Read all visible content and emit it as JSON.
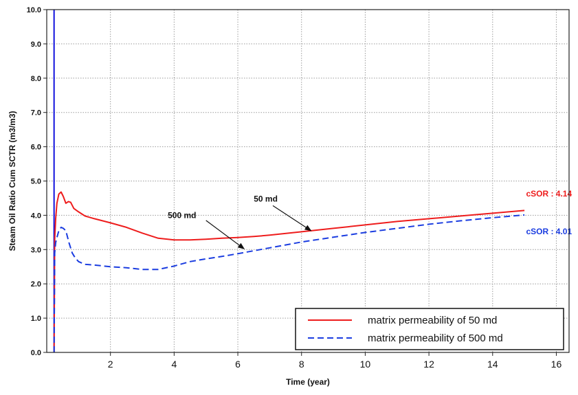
{
  "chart_data": {
    "type": "line",
    "xlabel": "Time (year)",
    "ylabel": "Steam Oil Ratio Cum SCTR (m3/m3)",
    "xlim": [
      0,
      16.4
    ],
    "ylim": [
      0,
      10
    ],
    "x_ticks": [
      2,
      4,
      6,
      8,
      10,
      12,
      14,
      16
    ],
    "x_tick_labels": [
      "2",
      "4",
      "6",
      "8",
      "10",
      "12",
      "14",
      "16"
    ],
    "y_ticks": [
      0,
      1,
      2,
      3,
      4,
      5,
      6,
      7,
      8,
      9,
      10
    ],
    "y_tick_labels": [
      "0.0",
      "1.0",
      "2.0",
      "3.0",
      "4.0",
      "5.0",
      "6.0",
      "7.0",
      "8.0",
      "9.0",
      "10.0"
    ],
    "grid": true,
    "legend_position": "bottom-right",
    "vertical_marker": {
      "x": 0.23,
      "color": "#1010dd"
    },
    "series": [
      {
        "name": "matrix permeability of 50 md",
        "color": "#ee1c1c",
        "dash": "solid",
        "x": [
          0.23,
          0.25,
          0.28,
          0.32,
          0.38,
          0.45,
          0.52,
          0.6,
          0.68,
          0.75,
          0.85,
          1.0,
          1.2,
          1.5,
          2.0,
          2.5,
          3.0,
          3.5,
          4.0,
          4.5,
          5.0,
          5.5,
          6.0,
          6.5,
          7.0,
          8.0,
          9.0,
          10.0,
          11.0,
          12.0,
          13.0,
          14.0,
          15.0
        ],
        "y": [
          0.0,
          3.3,
          3.9,
          4.35,
          4.62,
          4.68,
          4.55,
          4.35,
          4.4,
          4.38,
          4.2,
          4.1,
          3.98,
          3.9,
          3.78,
          3.65,
          3.48,
          3.33,
          3.28,
          3.28,
          3.3,
          3.33,
          3.35,
          3.38,
          3.42,
          3.52,
          3.62,
          3.72,
          3.82,
          3.9,
          3.98,
          4.06,
          4.14
        ]
      },
      {
        "name": "matrix permeability of 500 md",
        "color": "#1a3ce0",
        "dash": "dashed",
        "x": [
          0.23,
          0.25,
          0.28,
          0.32,
          0.38,
          0.45,
          0.52,
          0.6,
          0.7,
          0.8,
          0.9,
          1.0,
          1.2,
          1.5,
          2.0,
          2.5,
          3.0,
          3.5,
          4.0,
          4.5,
          5.0,
          5.5,
          6.0,
          7.0,
          8.0,
          9.0,
          10.0,
          11.0,
          12.0,
          13.0,
          14.0,
          15.0
        ],
        "y": [
          0.0,
          2.9,
          3.2,
          3.35,
          3.55,
          3.65,
          3.62,
          3.55,
          3.2,
          2.9,
          2.75,
          2.65,
          2.57,
          2.55,
          2.5,
          2.47,
          2.42,
          2.42,
          2.52,
          2.65,
          2.73,
          2.8,
          2.88,
          3.05,
          3.22,
          3.36,
          3.5,
          3.62,
          3.74,
          3.84,
          3.93,
          4.01
        ]
      }
    ],
    "annotations": [
      {
        "text": "500 md",
        "text_x": 3.8,
        "text_y": 3.92,
        "arrow_from": [
          5.0,
          3.85
        ],
        "arrow_to": [
          6.2,
          3.02
        ]
      },
      {
        "text": "50 md",
        "text_x": 6.5,
        "text_y": 4.4,
        "arrow_from": [
          7.1,
          4.28
        ],
        "arrow_to": [
          8.3,
          3.55
        ]
      }
    ],
    "final_labels": [
      {
        "text": "cSOR : 4.14",
        "x": 15.05,
        "y": 4.55,
        "color": "#ee1c1c"
      },
      {
        "text": "cSOR : 4.01",
        "x": 15.05,
        "y": 3.45,
        "color": "#1a3ce0"
      }
    ]
  }
}
